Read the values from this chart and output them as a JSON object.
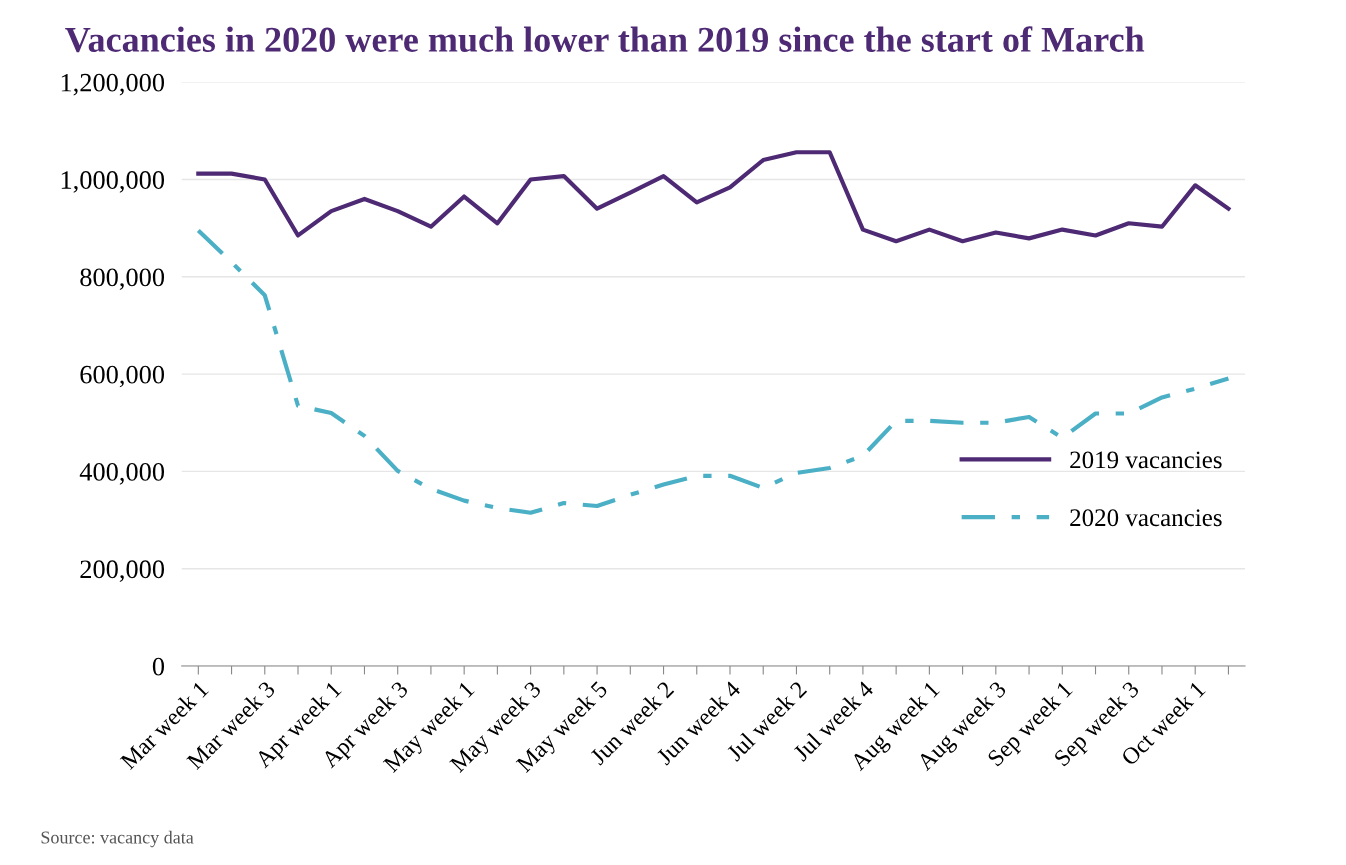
{
  "chart_data": {
    "type": "line",
    "title": "Vacancies in 2020 were much lower than 2019 since the start of March",
    "categories": [
      "Mar week 1",
      null,
      "Mar week 3",
      null,
      "Apr week 1",
      null,
      "Apr week 3",
      null,
      "May week 1",
      null,
      "May week 3",
      null,
      "May week 5",
      null,
      "Jun week 2",
      null,
      "Jun week 4",
      null,
      "Jul week 2",
      null,
      "Jul week 4",
      null,
      "Aug week 1",
      null,
      "Aug week 3",
      null,
      "Sep week 1",
      null,
      "Sep week 3",
      null,
      "Oct week 1",
      null
    ],
    "series": [
      {
        "name": "2019 vacancies",
        "color": "#4e2a74",
        "line_style": "solid",
        "values": [
          1012000,
          1012000,
          1000000,
          885000,
          935000,
          960000,
          935000,
          903000,
          965000,
          910000,
          1000000,
          1007000,
          940000,
          973000,
          1007000,
          953000,
          984000,
          1040000,
          1056000,
          1056000,
          897000,
          873000,
          897000,
          873000,
          891000,
          879000,
          897000,
          885000,
          910000,
          903000,
          988000,
          940000
        ]
      },
      {
        "name": "2020 vacancies",
        "color": "#4bb0c6",
        "line_style": "dashed",
        "values": [
          895000,
          830000,
          762000,
          535000,
          520000,
          473000,
          401000,
          364000,
          340000,
          325000,
          315000,
          335000,
          329000,
          352000,
          373000,
          391000,
          391000,
          366000,
          397000,
          407000,
          432000,
          504000,
          504000,
          500000,
          500000,
          512000,
          469000,
          519000,
          519000,
          552000,
          570000,
          591000
        ]
      }
    ],
    "ylim": [
      0,
      1200000
    ],
    "yticks": [
      {
        "value": 0,
        "label": "0"
      },
      {
        "value": 200000,
        "label": "200,000"
      },
      {
        "value": 400000,
        "label": "400,000"
      },
      {
        "value": 600000,
        "label": "600,000"
      },
      {
        "value": 800000,
        "label": "800,000"
      },
      {
        "value": 1000000,
        "label": "1,000,000"
      },
      {
        "value": 1200000,
        "label": "1,200,000"
      }
    ],
    "grid": "y",
    "legend": "right",
    "marker": "none",
    "annotations": [
      "Source: vacancy data"
    ]
  }
}
